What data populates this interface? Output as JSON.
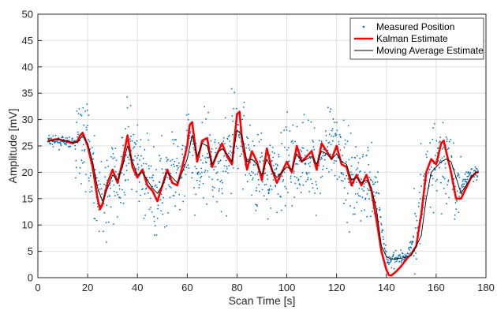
{
  "chart_data": {
    "type": "line",
    "xlabel": "Scan Time [s]",
    "ylabel": "Amplitude [mV]",
    "xlim": [
      0,
      180
    ],
    "ylim": [
      0,
      50
    ],
    "xticks": [
      0,
      20,
      40,
      60,
      80,
      100,
      120,
      140,
      160,
      180
    ],
    "yticks": [
      0,
      5,
      10,
      15,
      20,
      25,
      30,
      35,
      40,
      45,
      50
    ],
    "grid": true,
    "legend_position": "top-right",
    "series": [
      {
        "name": "Measured Position",
        "style": "dots",
        "color": "#0072BD",
        "seed": 7,
        "note_guide": [
          [
            4,
            26
          ],
          [
            12,
            25.7
          ],
          [
            16,
            25.6
          ],
          [
            20,
            26
          ],
          [
            24,
            16
          ],
          [
            27,
            14
          ],
          [
            30,
            19
          ],
          [
            33,
            17
          ],
          [
            36,
            26
          ],
          [
            40,
            20
          ],
          [
            44,
            18
          ],
          [
            48,
            16
          ],
          [
            52,
            20
          ],
          [
            56,
            18
          ],
          [
            60,
            26
          ],
          [
            64,
            20
          ],
          [
            68,
            24
          ],
          [
            72,
            21
          ],
          [
            76,
            22
          ],
          [
            80,
            28
          ],
          [
            84,
            24
          ],
          [
            88,
            19
          ],
          [
            92,
            21
          ],
          [
            96,
            18
          ],
          [
            100,
            22
          ],
          [
            104,
            21
          ],
          [
            108,
            23
          ],
          [
            112,
            21
          ],
          [
            116,
            24
          ],
          [
            120,
            24
          ],
          [
            124,
            21
          ],
          [
            128,
            18
          ],
          [
            132,
            18
          ],
          [
            136,
            17
          ],
          [
            140,
            3.5
          ],
          [
            144,
            3.5
          ],
          [
            148,
            4
          ],
          [
            152,
            9
          ],
          [
            156,
            20
          ],
          [
            160,
            22
          ],
          [
            164,
            22
          ],
          [
            168,
            15
          ],
          [
            172,
            19
          ],
          [
            176,
            20
          ]
        ]
      },
      {
        "name": "Kalman Estimate",
        "style": "line",
        "color": "#FF0000",
        "x": [
          4,
          8,
          12,
          14,
          16,
          17,
          18,
          20,
          22,
          24,
          25,
          26,
          28,
          30,
          32,
          34,
          36,
          38,
          40,
          42,
          44,
          46,
          48,
          50,
          52,
          54,
          56,
          58,
          60,
          61,
          62,
          64,
          66,
          68,
          70,
          72,
          74,
          76,
          78,
          80,
          81,
          82,
          84,
          86,
          88,
          90,
          92,
          94,
          96,
          98,
          100,
          102,
          104,
          106,
          108,
          110,
          112,
          114,
          116,
          118,
          120,
          122,
          124,
          126,
          128,
          130,
          132,
          134,
          136,
          138,
          140,
          141,
          142,
          144,
          146,
          148,
          150,
          152,
          154,
          156,
          158,
          160,
          162,
          163,
          164,
          166,
          168,
          170,
          172,
          174,
          176,
          177
        ],
        "y": [
          26,
          26.3,
          25.8,
          25.5,
          26,
          27,
          27.5,
          25,
          21,
          15,
          13,
          14,
          18,
          20.5,
          18,
          22,
          27,
          21,
          19,
          20.5,
          17.5,
          16.5,
          14.5,
          17.5,
          20.5,
          18,
          17.5,
          21,
          25,
          29,
          29.5,
          22,
          26,
          26.5,
          21,
          23.5,
          25.5,
          23,
          21.5,
          31,
          31.5,
          26,
          20.5,
          24,
          22,
          18.5,
          24.5,
          20.5,
          18,
          20,
          22,
          20,
          25,
          22,
          23,
          24,
          20.5,
          25.5,
          24,
          22.5,
          25,
          21.5,
          21,
          17.5,
          19.5,
          17.5,
          19.5,
          16.5,
          11,
          5,
          1.5,
          0.5,
          0.4,
          1.2,
          2.2,
          3.5,
          4.5,
          6,
          12,
          20,
          22.5,
          21.5,
          25.5,
          26,
          24,
          20,
          15,
          15,
          17,
          19,
          20,
          20
        ]
      },
      {
        "name": "Moving Average Estimate",
        "style": "line",
        "color": "#000000",
        "x": [
          4,
          8,
          12,
          14,
          16,
          18,
          20,
          22,
          24,
          26,
          28,
          30,
          32,
          34,
          36,
          38,
          40,
          42,
          44,
          46,
          48,
          50,
          52,
          54,
          56,
          58,
          60,
          62,
          64,
          66,
          68,
          70,
          72,
          74,
          76,
          78,
          80,
          82,
          84,
          86,
          88,
          90,
          92,
          94,
          96,
          98,
          100,
          102,
          104,
          106,
          108,
          110,
          112,
          114,
          116,
          118,
          120,
          122,
          124,
          126,
          128,
          130,
          132,
          134,
          136,
          138,
          140,
          142,
          144,
          146,
          148,
          150,
          152,
          154,
          156,
          158,
          160,
          162,
          164,
          166,
          168,
          170,
          172,
          174,
          176,
          177
        ],
        "y": [
          25.8,
          26.2,
          25.9,
          25.6,
          25.7,
          27,
          25.5,
          22,
          17,
          14.5,
          17,
          19.5,
          18.5,
          21,
          25,
          22,
          19.5,
          20,
          18.5,
          17,
          16,
          17.5,
          20,
          19,
          18,
          20,
          22.5,
          27,
          23,
          25.5,
          25,
          21.5,
          23.5,
          24.5,
          23.5,
          22,
          28,
          27,
          22,
          22.5,
          21.5,
          19.5,
          22.5,
          20.5,
          19,
          20,
          21,
          20.5,
          23.5,
          22,
          22.5,
          23,
          21.5,
          24,
          23.5,
          22.5,
          23.5,
          22,
          21.5,
          18.5,
          19,
          18,
          18.5,
          17,
          13,
          6,
          4,
          3.5,
          3.6,
          3.7,
          3.9,
          4.2,
          6,
          8,
          15,
          20,
          21,
          22,
          22.5,
          22,
          19,
          16,
          17.5,
          19,
          20,
          20
        ]
      }
    ]
  }
}
